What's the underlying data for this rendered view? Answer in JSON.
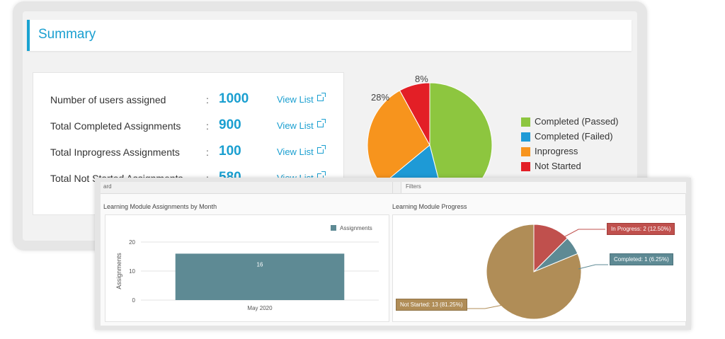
{
  "summary": {
    "title": "Summary",
    "stats": [
      {
        "label": "Number of users assigned",
        "value": "1000",
        "link": "View List"
      },
      {
        "label": "Total Completed Assignments",
        "value": "900",
        "link": "View List"
      },
      {
        "label": "Total Inprogress Assignments",
        "value": "100",
        "link": "View List"
      },
      {
        "label": "Total Not Started Assignments",
        "value": "580",
        "link": "View List"
      }
    ],
    "colon": ":"
  },
  "summary_pie": {
    "chart_data": {
      "type": "pie",
      "slices": [
        {
          "name": "Completed (Passed)",
          "value": 46,
          "color": "#8dc63f"
        },
        {
          "name": "Completed (Failed)",
          "value": 18,
          "color": "#1e9ad6"
        },
        {
          "name": "Inprogress",
          "value": 28,
          "color": "#f7941d",
          "label": "28%"
        },
        {
          "name": "Not Started",
          "value": 8,
          "color": "#e31f26",
          "label": "8%"
        }
      ]
    }
  },
  "front": {
    "tab_left": "ard",
    "tab_right": "Filters",
    "bar_panel_title": "Learning Module Assignments by Month",
    "pie_panel_title": "Learning Module Progress"
  },
  "bar_chart": {
    "chart_data": {
      "type": "bar",
      "categories": [
        "May 2020"
      ],
      "series": [
        {
          "name": "Assignments",
          "values": [
            16
          ],
          "color": "#5e8a94"
        }
      ],
      "ylabel": "Assignments",
      "ylim": [
        0,
        20
      ],
      "yticks": [
        "0",
        "10",
        "20"
      ],
      "data_labels": [
        "16"
      ]
    }
  },
  "progress_pie": {
    "chart_data": {
      "type": "pie",
      "slices": [
        {
          "name": "Not Started",
          "value": 13,
          "color": "#b08d57",
          "label": "Not Started: 13 (81.25%)"
        },
        {
          "name": "In Progress",
          "value": 2,
          "color": "#c0504d",
          "label": "In Progress: 2 (12.50%)"
        },
        {
          "name": "Completed",
          "value": 1,
          "color": "#5e8a94",
          "label": "Completed: 1 (6.25%)"
        }
      ]
    }
  }
}
